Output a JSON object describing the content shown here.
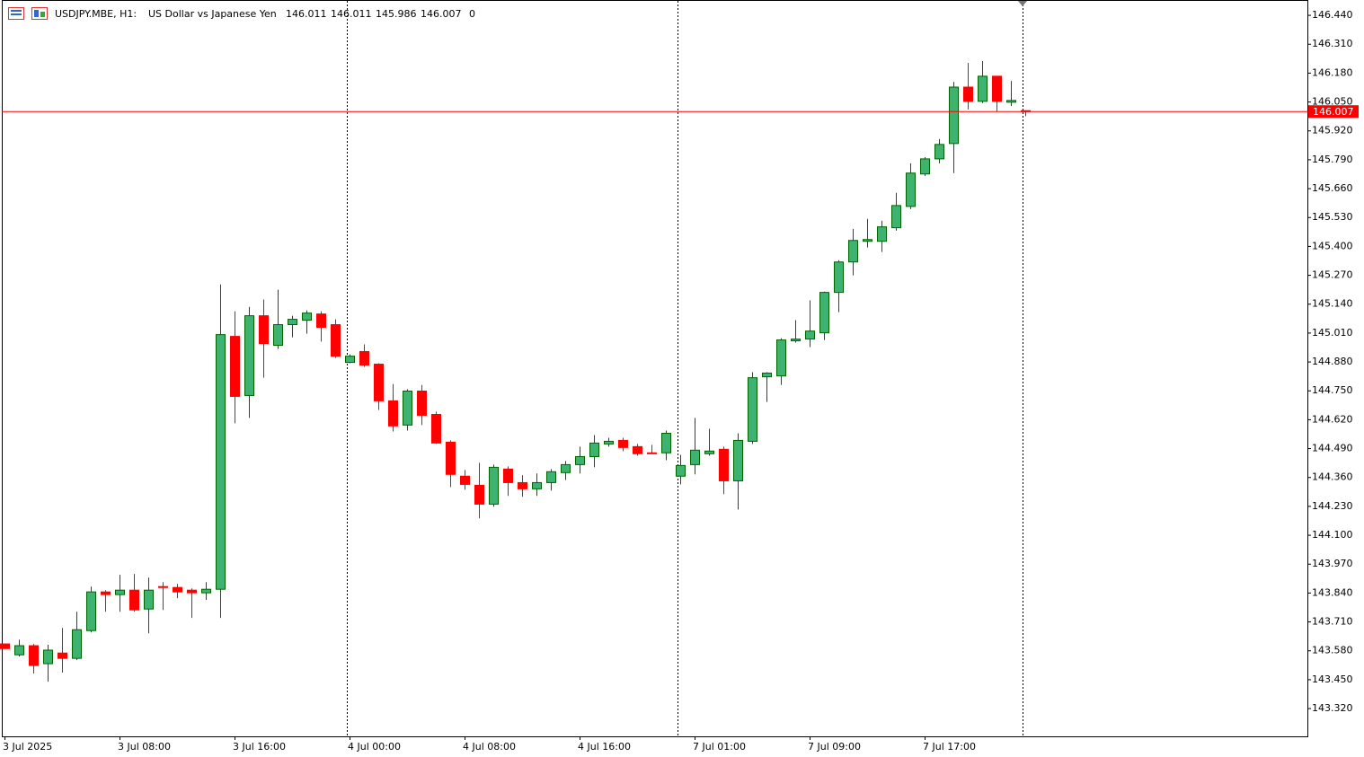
{
  "chart_data": {
    "type": "candlestick",
    "title": "USDJPY.MBE, H1:",
    "subtitle": "US Dollar vs Japanese Yen",
    "header_value": 0,
    "categories": [
      "3 Jul 2025",
      null,
      null,
      null,
      null,
      null,
      null,
      null,
      "3 Jul 08:00",
      null,
      null,
      null,
      null,
      null,
      null,
      null,
      "3 Jul 16:00",
      null,
      null,
      null,
      null,
      null,
      null,
      null,
      "4 Jul 00:00",
      null,
      null,
      null,
      null,
      null,
      null,
      null,
      "4 Jul 08:00",
      null,
      null,
      null,
      null,
      null,
      null,
      null,
      "4 Jul 16:00",
      null,
      null,
      null,
      null,
      null,
      null,
      null,
      "7 Jul 01:00",
      null,
      null,
      null,
      null,
      null,
      null,
      null,
      "7 Jul 09:00",
      null,
      null,
      null,
      null,
      null,
      null,
      null,
      "7 Jul 17:00",
      null,
      null,
      null,
      null,
      null,
      null,
      null
    ],
    "open": [
      143.611,
      143.562,
      143.603,
      143.522,
      143.57,
      143.546,
      143.671,
      143.845,
      143.833,
      143.853,
      143.768,
      143.869,
      143.865,
      143.853,
      143.841,
      143.857,
      144.995,
      144.729,
      145.088,
      144.955,
      145.048,
      145.068,
      145.096,
      145.048,
      144.878,
      144.927,
      144.87,
      144.705,
      144.596,
      144.749,
      144.644,
      144.519,
      144.366,
      144.325,
      144.24,
      144.398,
      144.337,
      144.309,
      144.337,
      144.382,
      144.418,
      144.454,
      144.511,
      144.527,
      144.499,
      144.471,
      144.471,
      144.366,
      144.418,
      144.467,
      144.487,
      144.345,
      144.523,
      144.813,
      144.817,
      144.975,
      144.983,
      145.011,
      145.193,
      145.33,
      145.423,
      145.423,
      145.484,
      145.58,
      145.726,
      145.794,
      145.863,
      146.117,
      146.053,
      146.166,
      146.049,
      146.011
    ],
    "high": [
      143.611,
      143.63,
      143.611,
      143.607,
      143.683,
      143.756,
      143.869,
      143.853,
      143.922,
      143.926,
      143.91,
      143.889,
      143.881,
      143.861,
      143.889,
      145.229,
      145.108,
      145.128,
      145.161,
      145.205,
      145.088,
      145.112,
      145.108,
      145.072,
      144.914,
      144.959,
      144.874,
      144.781,
      144.757,
      144.777,
      144.656,
      144.527,
      144.394,
      144.426,
      144.418,
      144.41,
      144.37,
      144.378,
      144.398,
      144.434,
      144.499,
      144.551,
      144.539,
      144.539,
      144.511,
      144.507,
      144.571,
      144.462,
      144.628,
      144.579,
      144.499,
      144.559,
      144.834,
      144.834,
      144.987,
      145.068,
      145.157,
      145.197,
      145.338,
      145.479,
      145.524,
      145.516,
      145.641,
      145.774,
      145.802,
      145.883,
      146.141,
      146.226,
      146.234,
      146.166,
      146.145,
      146.011
    ],
    "low": [
      143.59,
      143.554,
      143.478,
      143.441,
      143.482,
      143.538,
      143.663,
      143.756,
      143.756,
      143.756,
      143.659,
      143.764,
      143.817,
      143.728,
      143.809,
      143.728,
      144.604,
      144.628,
      144.809,
      144.939,
      144.991,
      145.007,
      144.971,
      144.898,
      144.874,
      144.858,
      144.664,
      144.567,
      144.571,
      144.596,
      144.511,
      144.317,
      144.305,
      144.176,
      144.228,
      144.277,
      144.273,
      144.277,
      144.301,
      144.349,
      144.378,
      144.406,
      144.499,
      144.478,
      144.458,
      144.467,
      144.438,
      144.329,
      144.374,
      144.458,
      144.285,
      144.216,
      144.511,
      144.7,
      144.777,
      144.967,
      144.947,
      144.979,
      145.104,
      145.27,
      145.395,
      145.375,
      145.471,
      145.568,
      145.717,
      145.774,
      145.73,
      146.016,
      146.045,
      146.008,
      146.032,
      145.986
    ],
    "close": [
      143.59,
      143.603,
      143.514,
      143.583,
      143.546,
      143.675,
      143.845,
      143.833,
      143.853,
      143.764,
      143.853,
      143.865,
      143.845,
      143.841,
      143.857,
      145.003,
      144.725,
      145.088,
      144.963,
      145.048,
      145.072,
      145.1,
      145.036,
      144.906,
      144.906,
      144.866,
      144.705,
      144.592,
      144.749,
      144.64,
      144.515,
      144.374,
      144.329,
      144.24,
      144.406,
      144.337,
      144.309,
      144.337,
      144.386,
      144.418,
      144.454,
      144.515,
      144.523,
      144.495,
      144.467,
      144.467,
      144.559,
      144.414,
      144.483,
      144.479,
      144.345,
      144.527,
      144.809,
      144.83,
      144.979,
      144.983,
      145.019,
      145.193,
      145.33,
      145.427,
      145.431,
      145.488,
      145.584,
      145.73,
      145.794,
      145.859,
      146.117,
      146.053,
      146.166,
      146.053,
      146.057,
      146.007
    ],
    "up_color": "#3cb371",
    "up_edge": "#006400",
    "down_color": "#ff0000",
    "ylim": [
      143.195,
      146.505
    ],
    "yticks": [
      {
        "value": 146.44,
        "label": "146.440"
      },
      {
        "value": 146.31,
        "label": "146.310"
      },
      {
        "value": 146.18,
        "label": "146.180"
      },
      {
        "value": 146.05,
        "label": "146.050"
      },
      {
        "value": 145.92,
        "label": "145.920"
      },
      {
        "value": 145.79,
        "label": "145.790"
      },
      {
        "value": 145.66,
        "label": "145.660"
      },
      {
        "value": 145.53,
        "label": "145.530"
      },
      {
        "value": 145.4,
        "label": "145.400"
      },
      {
        "value": 145.27,
        "label": "145.270"
      },
      {
        "value": 145.14,
        "label": "145.140"
      },
      {
        "value": 145.01,
        "label": "145.010"
      },
      {
        "value": 144.88,
        "label": "144.880"
      },
      {
        "value": 144.75,
        "label": "144.750"
      },
      {
        "value": 144.62,
        "label": "144.620"
      },
      {
        "value": 144.49,
        "label": "144.490"
      },
      {
        "value": 144.36,
        "label": "144.360"
      },
      {
        "value": 144.23,
        "label": "144.230"
      },
      {
        "value": 144.1,
        "label": "144.100"
      },
      {
        "value": 143.97,
        "label": "143.970"
      },
      {
        "value": 143.84,
        "label": "143.840"
      },
      {
        "value": 143.71,
        "label": "143.710"
      },
      {
        "value": 143.58,
        "label": "143.580"
      },
      {
        "value": 143.45,
        "label": "143.450"
      },
      {
        "value": 143.32,
        "label": "143.320"
      }
    ]
  }
}
